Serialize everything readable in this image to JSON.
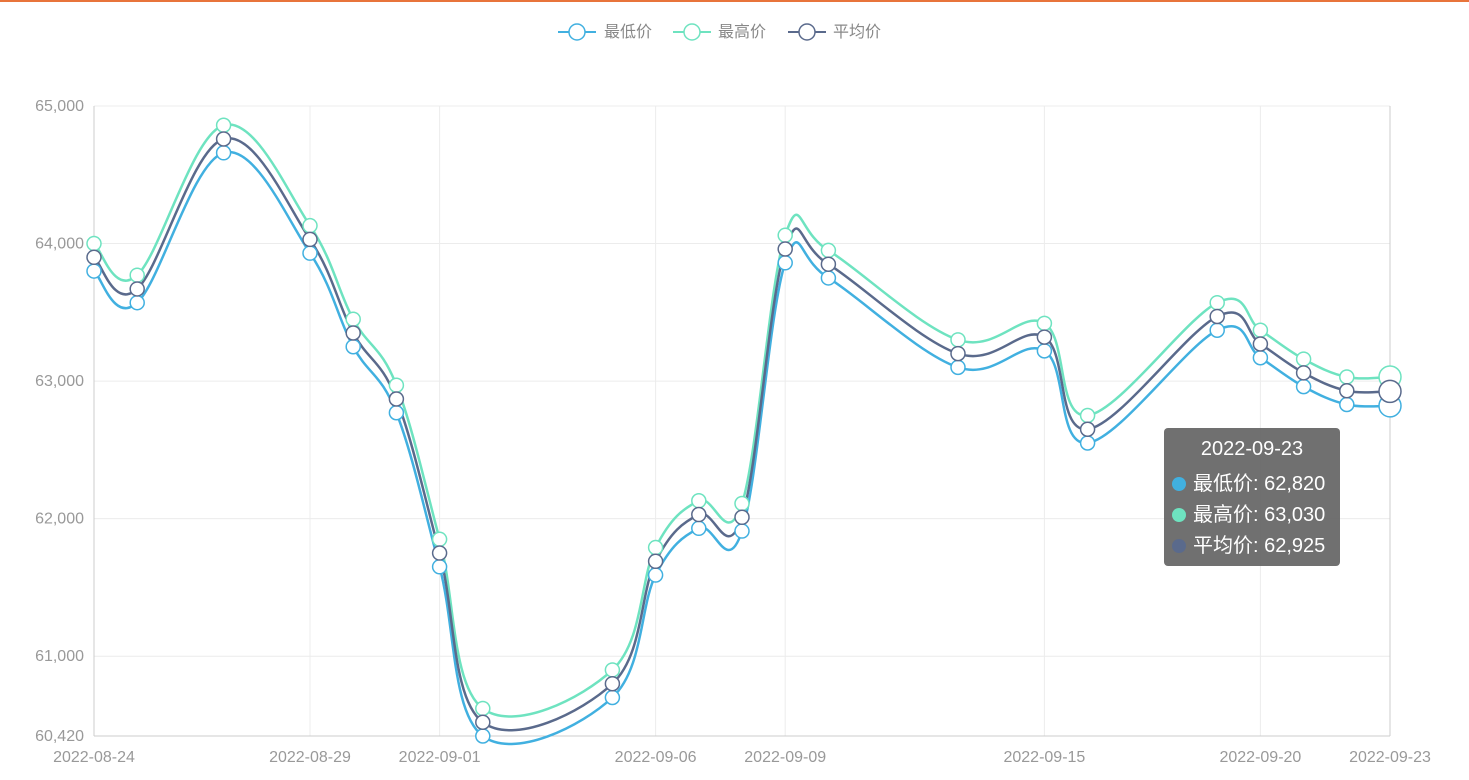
{
  "chart_data": {
    "type": "line",
    "smooth": true,
    "x": [
      "2022-08-24",
      "2022-08-25",
      "2022-08-27",
      "2022-08-29",
      "2022-08-30",
      "2022-08-31",
      "2022-09-01",
      "2022-09-02",
      "2022-09-05",
      "2022-09-06",
      "2022-09-07",
      "2022-09-08",
      "2022-09-09",
      "2022-09-10",
      "2022-09-13",
      "2022-09-15",
      "2022-09-16",
      "2022-09-19",
      "2022-09-20",
      "2022-09-21",
      "2022-09-22",
      "2022-09-23"
    ],
    "x_ticks": [
      "2022-08-24",
      "2022-08-29",
      "2022-09-01",
      "2022-09-06",
      "2022-09-09",
      "2022-09-15",
      "2022-09-20",
      "2022-09-23"
    ],
    "y_ticks": [
      "60,420",
      "61,000",
      "62,000",
      "63,000",
      "64,000",
      "65,000"
    ],
    "ylim": [
      60420,
      65000
    ],
    "grid": true,
    "legend_position": "top-center",
    "series": [
      {
        "name": "最低价",
        "color": "#41b0e0",
        "values": [
          63800,
          63570,
          64660,
          63930,
          63250,
          62770,
          61650,
          60420,
          60700,
          61590,
          61930,
          61910,
          63860,
          63750,
          63100,
          63220,
          62550,
          63370,
          63170,
          62960,
          62830,
          62820
        ]
      },
      {
        "name": "最高价",
        "color": "#6ee3c0",
        "values": [
          64000,
          63770,
          64860,
          64130,
          63450,
          62970,
          61850,
          60620,
          60900,
          61790,
          62130,
          62110,
          64060,
          63950,
          63300,
          63420,
          62750,
          63570,
          63370,
          63160,
          63030,
          63030
        ]
      },
      {
        "name": "平均价",
        "color": "#5a6a8c",
        "values": [
          63900,
          63670,
          64760,
          64030,
          63350,
          62870,
          61750,
          60520,
          60800,
          61690,
          62030,
          62010,
          63960,
          63850,
          63200,
          63320,
          62650,
          63470,
          63270,
          63060,
          62930,
          62925
        ]
      }
    ],
    "tooltip": {
      "title": "2022-09-23",
      "rows": [
        {
          "label": "最低价: 62,820",
          "color": "#41b0e0"
        },
        {
          "label": "最高价: 63,030",
          "color": "#6ee3c0"
        },
        {
          "label": "平均价: 62,925",
          "color": "#5a6a8c"
        }
      ]
    }
  }
}
